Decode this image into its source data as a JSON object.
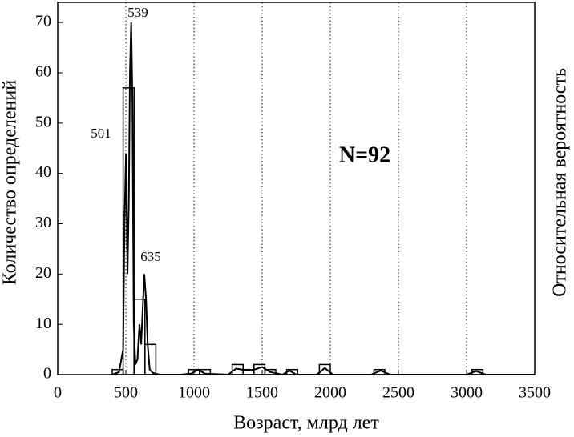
{
  "chart_data": {
    "type": "histogram",
    "x_label": "Возраст, млрд лет",
    "y_label": "Количество определений",
    "y2_label": "Относительная вероятность",
    "xlim": [
      0,
      3500
    ],
    "xticks": [
      0,
      500,
      1000,
      1500,
      2000,
      2500,
      3000,
      3500
    ],
    "ylim": [
      0,
      74
    ],
    "yticks": [
      0,
      10,
      20,
      30,
      40,
      50,
      60,
      70
    ],
    "grid": true,
    "color": "#000000",
    "bins": [
      400,
      480,
      560,
      640,
      720,
      800,
      880,
      960,
      1040,
      1120,
      1200,
      1280,
      1360,
      1440,
      1520,
      1600,
      1680,
      1760,
      1840,
      1920,
      2000,
      2080,
      2160,
      2240,
      2320,
      2400,
      2480,
      2560,
      2640,
      2720,
      2800,
      2880,
      2960,
      3040,
      3120
    ],
    "counts": [
      1,
      57,
      15,
      6,
      0,
      0,
      0,
      1,
      1,
      0,
      0,
      2,
      1,
      2,
      1,
      0,
      1,
      0,
      0,
      2,
      0,
      0,
      0,
      0,
      1,
      0,
      0,
      0,
      0,
      0,
      0,
      0,
      0,
      1
    ],
    "curve": {
      "x": [
        400,
        450,
        480,
        490,
        501,
        512,
        522,
        530,
        539,
        548,
        558,
        570,
        585,
        600,
        612,
        622,
        635,
        648,
        660,
        675,
        700,
        750,
        900,
        980,
        1030,
        1080,
        1250,
        1310,
        1350,
        1420,
        1500,
        1560,
        1650,
        1700,
        1750,
        1900,
        1960,
        2020,
        2300,
        2370,
        2440,
        3000,
        3070,
        3140,
        3500
      ],
      "values": [
        0,
        0.5,
        5,
        30,
        44,
        20,
        35,
        60,
        70,
        55,
        10,
        2,
        3,
        10,
        6,
        12,
        20,
        15,
        6,
        1,
        0.3,
        0,
        0,
        0.2,
        1,
        0.2,
        0,
        1.2,
        1,
        0.8,
        1.5,
        0.5,
        0,
        0.8,
        0,
        0,
        1.3,
        0,
        0,
        0.8,
        0,
        0,
        0.7,
        0,
        0
      ]
    },
    "annotations": [
      "501",
      "539",
      "635",
      "N=92"
    ]
  }
}
